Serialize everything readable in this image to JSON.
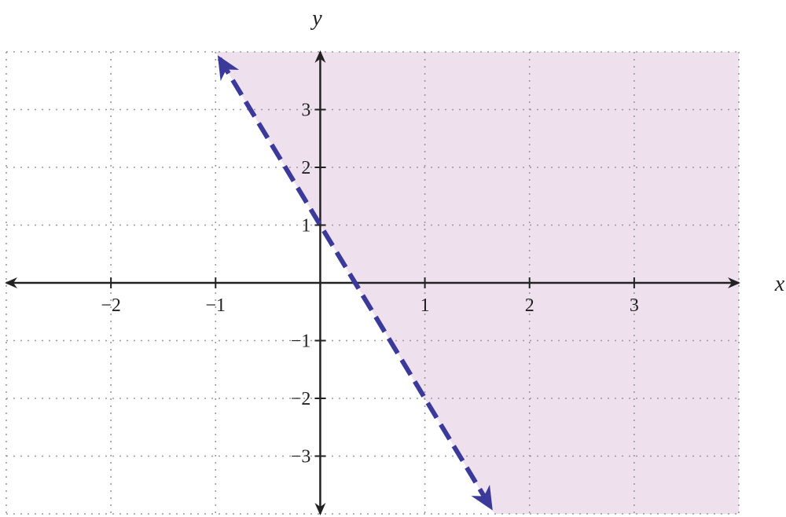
{
  "chart_data": {
    "type": "line",
    "title": "",
    "xlabel": "x",
    "ylabel": "y",
    "xlim": [
      -3,
      4
    ],
    "ylim": [
      -4,
      4
    ],
    "grid": true,
    "x_ticks": [
      -2,
      -1,
      1,
      2,
      3
    ],
    "y_ticks": [
      -3,
      -2,
      -1,
      1,
      2,
      3
    ],
    "x_tick_labels": [
      "−2",
      "−1",
      "1",
      "2",
      "3"
    ],
    "y_tick_labels": [
      "−3",
      "−2",
      "−1",
      "1",
      "2",
      "3"
    ],
    "boundary_line": {
      "slope": -3,
      "intercept": 1,
      "style": "dashed",
      "arrows": "both",
      "x": [
        -1,
        1.667
      ],
      "y": [
        4,
        -4
      ]
    },
    "shaded_region": "above-right of boundary line",
    "colors": {
      "line": "#3b3a9a",
      "shade": "#efe0ee",
      "grid": "#9a9a9a",
      "axis": "#222222"
    }
  }
}
